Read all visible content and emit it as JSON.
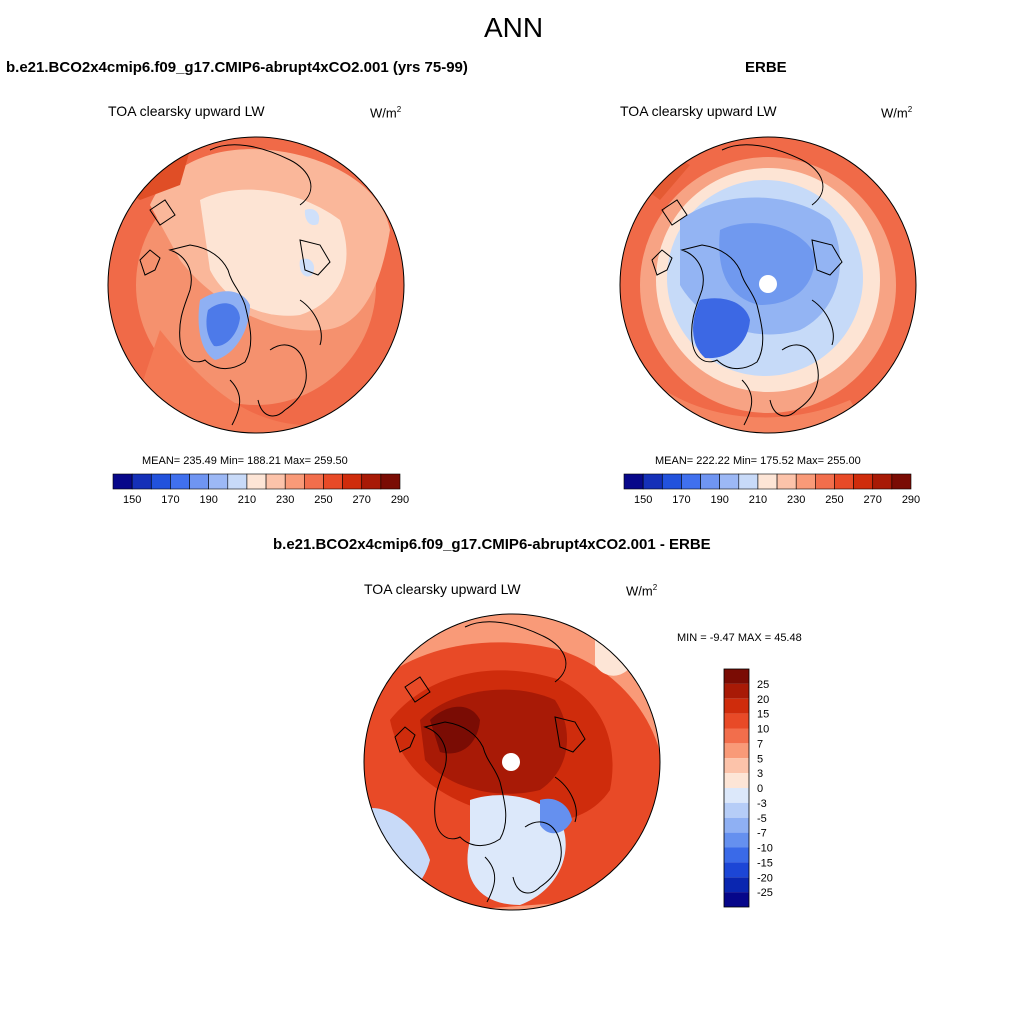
{
  "figure_title": "ANN",
  "panels": [
    {
      "title": "b.e21.BCO2x4cmip6.f09_g17.CMIP6-abrupt4xCO2.001 (yrs 75-99)",
      "field_label": "TOA clearsky upward LW",
      "unit_base": "W/m",
      "unit_exp": "2",
      "stats": "MEAN= 235.49  Min= 188.21  Max= 259.50"
    },
    {
      "title": "ERBE",
      "field_label": "TOA clearsky upward LW",
      "unit_base": "W/m",
      "unit_exp": "2",
      "stats": "MEAN= 222.22  Min= 175.52  Max= 255.00"
    },
    {
      "title": "b.e21.BCO2x4cmip6.f09_g17.CMIP6-abrupt4xCO2.001 - ERBE",
      "field_label": "TOA clearsky upward LW",
      "unit_base": "W/m",
      "unit_exp": "2",
      "stats": "MIN =  -9.47 MAX =  45.48"
    }
  ],
  "abs_colorbar": {
    "tick_labels": [
      "150",
      "170",
      "190",
      "210",
      "230",
      "250",
      "270",
      "290"
    ],
    "colors": [
      "#08088a",
      "#1530b8",
      "#2252dc",
      "#4070ee",
      "#6f95f2",
      "#9cb8f5",
      "#c8daf8",
      "#fde5d6",
      "#fcc3aa",
      "#f99a78",
      "#f26e4c",
      "#e84a27",
      "#cf2c0c",
      "#a81a06",
      "#7a0c04"
    ]
  },
  "diff_colorbar": {
    "tick_labels": [
      "25",
      "20",
      "15",
      "10",
      "7",
      "5",
      "3",
      "0",
      "-3",
      "-5",
      "-7",
      "-10",
      "-15",
      "-20",
      "-25"
    ],
    "colors": [
      "#7a0c04",
      "#a81a06",
      "#cf2c0c",
      "#e84a27",
      "#f26e4c",
      "#f99a78",
      "#fcc3aa",
      "#fde5d6",
      "#dce8fa",
      "#b6cdf7",
      "#8fb0f3",
      "#6590ef",
      "#3a6ae8",
      "#1c46d6",
      "#0a26b0",
      "#06068a"
    ]
  },
  "chart_data": {
    "type": "heatmap",
    "projection": "north polar stereographic",
    "title": "ANN",
    "variable": "TOA clearsky upward LW",
    "units": "W/m2",
    "panels": [
      {
        "name": "b.e21.BCO2x4cmip6.f09_g17.CMIP6-abrupt4xCO2.001 (yrs 75-99)",
        "mean": 235.49,
        "min": 188.21,
        "max": 259.5
      },
      {
        "name": "ERBE",
        "mean": 222.22,
        "min": 175.52,
        "max": 255.0
      },
      {
        "name": "b.e21.BCO2x4cmip6.f09_g17.CMIP6-abrupt4xCO2.001 - ERBE",
        "min": -9.47,
        "max": 45.48
      }
    ],
    "abs_levels": [
      150,
      160,
      170,
      180,
      190,
      200,
      210,
      220,
      230,
      240,
      250,
      260,
      270,
      280,
      290
    ],
    "diff_levels": [
      -25,
      -20,
      -15,
      -10,
      -7,
      -5,
      -3,
      0,
      3,
      5,
      7,
      10,
      15,
      20,
      25
    ]
  }
}
